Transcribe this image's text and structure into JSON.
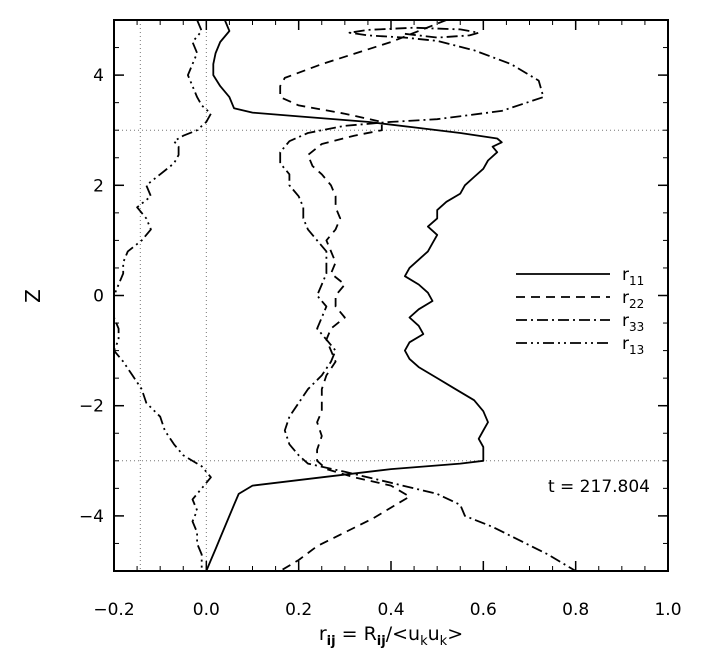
{
  "chart_data": {
    "type": "line",
    "xlabel": "r",
    "xlabel_sub": "ij",
    "xlabel_mid": " = R",
    "xlabel_mid_sub": "ij",
    "xlabel_tail": "/<u",
    "xlabel_k1": "k",
    "xlabel_u2": "u",
    "xlabel_k2": "k",
    "xlabel_end": ">",
    "ylabel": "Z",
    "xlim": [
      -0.2,
      1.0
    ],
    "ylim": [
      -5,
      5
    ],
    "xticks": [
      -0.2,
      0.0,
      0.2,
      0.4,
      0.6,
      0.8,
      1.0
    ],
    "xticklabels": [
      "−0.2",
      "0.0",
      "0.2",
      "0.4",
      "0.6",
      "0.8",
      "1.0"
    ],
    "yticks": [
      -4,
      -2,
      0,
      2,
      4
    ],
    "yticklabels": [
      "−4",
      "−2",
      "0",
      "2",
      "4"
    ],
    "ref_vlines": [
      -0.143,
      0.0
    ],
    "ref_hlines": [
      -3,
      3
    ],
    "annotation": "t = 217.804",
    "legend_position": "right-middle",
    "series": [
      {
        "name": "r",
        "sub": "11",
        "dash": "solid",
        "points": [
          [
            0.04,
            5.0
          ],
          [
            0.05,
            4.8
          ],
          [
            0.03,
            4.6
          ],
          [
            0.02,
            4.4
          ],
          [
            0.015,
            4.2
          ],
          [
            0.015,
            4.0
          ],
          [
            0.03,
            3.8
          ],
          [
            0.05,
            3.6
          ],
          [
            0.06,
            3.4
          ],
          [
            0.1,
            3.32
          ],
          [
            0.2,
            3.25
          ],
          [
            0.35,
            3.15
          ],
          [
            0.45,
            3.05
          ],
          [
            0.55,
            2.95
          ],
          [
            0.63,
            2.85
          ],
          [
            0.64,
            2.78
          ],
          [
            0.62,
            2.7
          ],
          [
            0.63,
            2.6
          ],
          [
            0.61,
            2.45
          ],
          [
            0.6,
            2.3
          ],
          [
            0.58,
            2.15
          ],
          [
            0.56,
            2.0
          ],
          [
            0.55,
            1.85
          ],
          [
            0.52,
            1.7
          ],
          [
            0.5,
            1.55
          ],
          [
            0.5,
            1.4
          ],
          [
            0.48,
            1.25
          ],
          [
            0.5,
            1.1
          ],
          [
            0.49,
            0.95
          ],
          [
            0.48,
            0.8
          ],
          [
            0.46,
            0.65
          ],
          [
            0.44,
            0.5
          ],
          [
            0.43,
            0.35
          ],
          [
            0.46,
            0.2
          ],
          [
            0.48,
            0.05
          ],
          [
            0.49,
            -0.1
          ],
          [
            0.46,
            -0.25
          ],
          [
            0.44,
            -0.4
          ],
          [
            0.46,
            -0.55
          ],
          [
            0.47,
            -0.7
          ],
          [
            0.44,
            -0.85
          ],
          [
            0.43,
            -1.0
          ],
          [
            0.44,
            -1.15
          ],
          [
            0.46,
            -1.3
          ],
          [
            0.5,
            -1.5
          ],
          [
            0.54,
            -1.7
          ],
          [
            0.58,
            -1.9
          ],
          [
            0.6,
            -2.1
          ],
          [
            0.61,
            -2.3
          ],
          [
            0.6,
            -2.45
          ],
          [
            0.59,
            -2.6
          ],
          [
            0.6,
            -2.75
          ],
          [
            0.6,
            -2.9
          ],
          [
            0.6,
            -3.0
          ],
          [
            0.55,
            -3.05
          ],
          [
            0.4,
            -3.15
          ],
          [
            0.25,
            -3.3
          ],
          [
            0.1,
            -3.45
          ],
          [
            0.07,
            -3.6
          ],
          [
            0.06,
            -3.8
          ],
          [
            0.05,
            -4.0
          ],
          [
            0.04,
            -4.2
          ],
          [
            0.03,
            -4.4
          ],
          [
            0.02,
            -4.6
          ],
          [
            0.01,
            -4.8
          ],
          [
            0.0,
            -5.0
          ]
        ]
      },
      {
        "name": "r",
        "sub": "22",
        "dash": "dashed",
        "points": [
          [
            0.52,
            5.0
          ],
          [
            0.4,
            4.6
          ],
          [
            0.25,
            4.2
          ],
          [
            0.17,
            3.95
          ],
          [
            0.16,
            3.8
          ],
          [
            0.16,
            3.6
          ],
          [
            0.2,
            3.45
          ],
          [
            0.3,
            3.3
          ],
          [
            0.38,
            3.15
          ],
          [
            0.38,
            3.0
          ],
          [
            0.32,
            2.9
          ],
          [
            0.25,
            2.75
          ],
          [
            0.22,
            2.55
          ],
          [
            0.23,
            2.35
          ],
          [
            0.25,
            2.2
          ],
          [
            0.27,
            2.0
          ],
          [
            0.28,
            1.8
          ],
          [
            0.28,
            1.6
          ],
          [
            0.29,
            1.4
          ],
          [
            0.28,
            1.2
          ],
          [
            0.26,
            1.0
          ],
          [
            0.27,
            0.8
          ],
          [
            0.28,
            0.6
          ],
          [
            0.27,
            0.4
          ],
          [
            0.3,
            0.2
          ],
          [
            0.28,
            0.0
          ],
          [
            0.28,
            -0.2
          ],
          [
            0.3,
            -0.4
          ],
          [
            0.27,
            -0.6
          ],
          [
            0.26,
            -0.8
          ],
          [
            0.27,
            -1.0
          ],
          [
            0.28,
            -1.2
          ],
          [
            0.26,
            -1.45
          ],
          [
            0.25,
            -1.7
          ],
          [
            0.25,
            -1.9
          ],
          [
            0.25,
            -2.1
          ],
          [
            0.24,
            -2.3
          ],
          [
            0.25,
            -2.55
          ],
          [
            0.24,
            -2.8
          ],
          [
            0.24,
            -3.0
          ],
          [
            0.26,
            -3.15
          ],
          [
            0.32,
            -3.3
          ],
          [
            0.4,
            -3.45
          ],
          [
            0.44,
            -3.65
          ],
          [
            0.4,
            -3.85
          ],
          [
            0.36,
            -4.05
          ],
          [
            0.3,
            -4.3
          ],
          [
            0.24,
            -4.55
          ],
          [
            0.2,
            -4.8
          ],
          [
            0.16,
            -5.0
          ]
        ]
      },
      {
        "name": "r",
        "sub": "33",
        "dash": "dashdot",
        "points": [
          [
            0.43,
            4.75
          ],
          [
            0.5,
            4.68
          ],
          [
            0.57,
            4.72
          ],
          [
            0.59,
            4.77
          ],
          [
            0.55,
            4.83
          ],
          [
            0.45,
            4.86
          ],
          [
            0.35,
            4.82
          ],
          [
            0.31,
            4.77
          ],
          [
            0.35,
            4.72
          ],
          [
            0.43,
            4.68
          ],
          [
            0.5,
            4.62
          ],
          [
            0.58,
            4.45
          ],
          [
            0.66,
            4.2
          ],
          [
            0.72,
            3.9
          ],
          [
            0.73,
            3.6
          ],
          [
            0.64,
            3.35
          ],
          [
            0.5,
            3.2
          ],
          [
            0.4,
            3.15
          ],
          [
            0.3,
            3.08
          ],
          [
            0.22,
            2.95
          ],
          [
            0.18,
            2.8
          ],
          [
            0.16,
            2.6
          ],
          [
            0.16,
            2.4
          ],
          [
            0.18,
            2.2
          ],
          [
            0.18,
            2.0
          ],
          [
            0.2,
            1.8
          ],
          [
            0.21,
            1.6
          ],
          [
            0.21,
            1.4
          ],
          [
            0.22,
            1.2
          ],
          [
            0.24,
            1.0
          ],
          [
            0.26,
            0.8
          ],
          [
            0.26,
            0.6
          ],
          [
            0.26,
            0.4
          ],
          [
            0.25,
            0.2
          ],
          [
            0.24,
            0.0
          ],
          [
            0.26,
            -0.2
          ],
          [
            0.25,
            -0.4
          ],
          [
            0.24,
            -0.6
          ],
          [
            0.26,
            -0.8
          ],
          [
            0.28,
            -1.0
          ],
          [
            0.27,
            -1.2
          ],
          [
            0.25,
            -1.45
          ],
          [
            0.22,
            -1.7
          ],
          [
            0.2,
            -1.95
          ],
          [
            0.18,
            -2.2
          ],
          [
            0.17,
            -2.45
          ],
          [
            0.18,
            -2.7
          ],
          [
            0.2,
            -2.9
          ],
          [
            0.22,
            -3.05
          ],
          [
            0.3,
            -3.2
          ],
          [
            0.4,
            -3.4
          ],
          [
            0.5,
            -3.6
          ],
          [
            0.55,
            -3.8
          ],
          [
            0.56,
            -4.0
          ],
          [
            0.62,
            -4.2
          ],
          [
            0.68,
            -4.45
          ],
          [
            0.74,
            -4.7
          ],
          [
            0.8,
            -5.0
          ]
        ]
      },
      {
        "name": "r",
        "sub": "13",
        "dash": "dashdotdot",
        "points": [
          [
            -0.02,
            5.0
          ],
          [
            -0.01,
            4.8
          ],
          [
            -0.03,
            4.6
          ],
          [
            -0.02,
            4.4
          ],
          [
            -0.03,
            4.2
          ],
          [
            -0.04,
            4.0
          ],
          [
            -0.03,
            3.8
          ],
          [
            -0.02,
            3.6
          ],
          [
            -0.01,
            3.45
          ],
          [
            0.01,
            3.3
          ],
          [
            0.0,
            3.15
          ],
          [
            -0.02,
            3.0
          ],
          [
            -0.05,
            2.9
          ],
          [
            -0.07,
            2.8
          ],
          [
            -0.06,
            2.7
          ],
          [
            -0.06,
            2.55
          ],
          [
            -0.07,
            2.4
          ],
          [
            -0.1,
            2.2
          ],
          [
            -0.13,
            2.0
          ],
          [
            -0.12,
            1.8
          ],
          [
            -0.15,
            1.6
          ],
          [
            -0.13,
            1.4
          ],
          [
            -0.12,
            1.2
          ],
          [
            -0.14,
            1.0
          ],
          [
            -0.17,
            0.8
          ],
          [
            -0.18,
            0.6
          ],
          [
            -0.18,
            0.4
          ],
          [
            -0.19,
            0.2
          ],
          [
            -0.2,
            0.0
          ],
          [
            -0.2,
            -0.2
          ],
          [
            -0.2,
            -0.4
          ],
          [
            -0.19,
            -0.6
          ],
          [
            -0.19,
            -0.8
          ],
          [
            -0.2,
            -1.0
          ],
          [
            -0.18,
            -1.2
          ],
          [
            -0.16,
            -1.45
          ],
          [
            -0.14,
            -1.7
          ],
          [
            -0.13,
            -1.95
          ],
          [
            -0.1,
            -2.2
          ],
          [
            -0.09,
            -2.45
          ],
          [
            -0.07,
            -2.7
          ],
          [
            -0.05,
            -2.9
          ],
          [
            -0.01,
            -3.1
          ],
          [
            0.01,
            -3.3
          ],
          [
            -0.01,
            -3.5
          ],
          [
            -0.03,
            -3.7
          ],
          [
            -0.02,
            -3.9
          ],
          [
            -0.03,
            -4.1
          ],
          [
            -0.02,
            -4.3
          ],
          [
            -0.02,
            -4.5
          ],
          [
            -0.01,
            -4.7
          ],
          [
            -0.01,
            -5.0
          ]
        ]
      }
    ]
  }
}
